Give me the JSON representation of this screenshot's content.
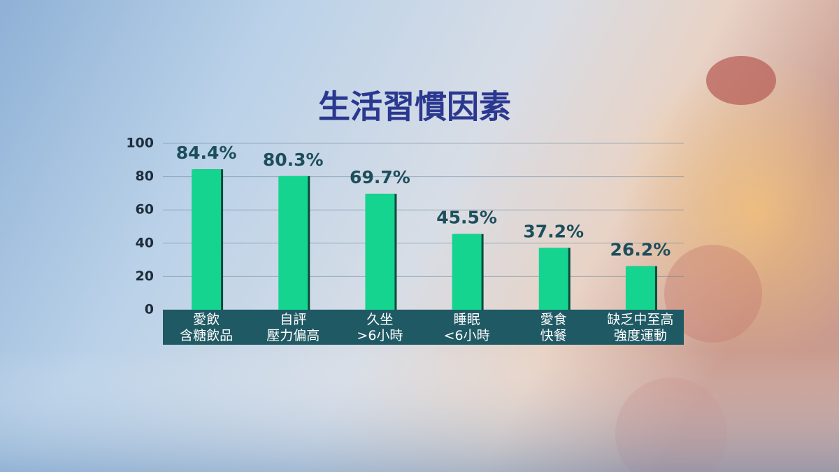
{
  "chart_data": {
    "type": "bar",
    "title": "生活習慣因素",
    "categories": [
      [
        "愛飲",
        "含糖飲品"
      ],
      [
        "自評",
        "壓力偏高"
      ],
      [
        "久坐",
        ">6小時"
      ],
      [
        "睡眠",
        "<6小時"
      ],
      [
        "愛食",
        "快餐"
      ],
      [
        "缺乏中至高",
        "強度運動"
      ]
    ],
    "values": [
      84.4,
      80.3,
      69.7,
      45.5,
      37.2,
      26.2
    ],
    "value_labels": [
      "84.4%",
      "80.3%",
      "69.7%",
      "45.5%",
      "37.2%",
      "26.2%"
    ],
    "color": "#14d48f",
    "ylim": [
      0,
      100
    ],
    "yticks": [
      0,
      20,
      40,
      60,
      80,
      100
    ],
    "grid": true
  }
}
